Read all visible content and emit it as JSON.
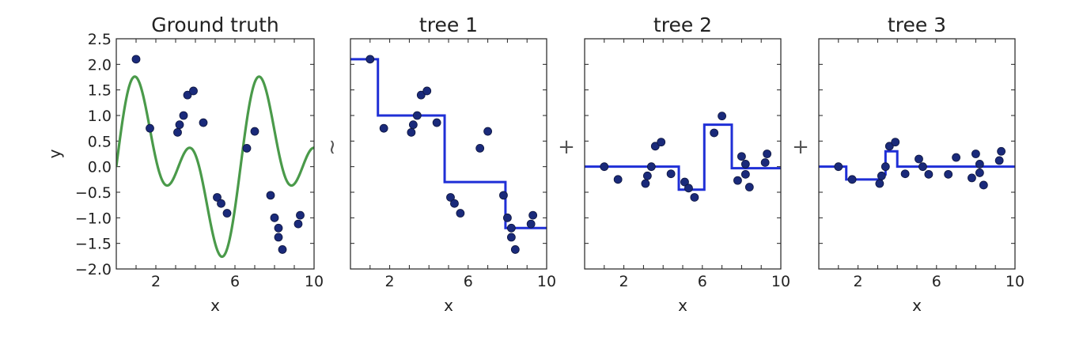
{
  "operators": [
    "~",
    "+",
    "+"
  ],
  "colors": {
    "truth_curve": "#4a9a4a",
    "points": "#1a2a7a",
    "step": "#1f2fd6"
  },
  "chart_data": [
    {
      "type": "scatter",
      "title": "Ground truth",
      "xlabel": "x",
      "ylabel": "y",
      "xlim": [
        0,
        10
      ],
      "ylim": [
        -2.0,
        2.5
      ],
      "xticks": [
        2,
        6,
        10
      ],
      "yticks": [
        "2.5",
        "2.0",
        "1.5",
        "1.0",
        "0.5",
        "0.0",
        "−0.5",
        "−1.0",
        "−1.5",
        "−2.0"
      ],
      "curve": "sin(x) + sin(2x)",
      "points": {
        "x": [
          1.0,
          1.7,
          3.1,
          3.2,
          3.4,
          3.6,
          3.9,
          4.4,
          5.1,
          5.3,
          5.6,
          6.6,
          7.0,
          7.8,
          8.0,
          8.2,
          8.2,
          8.4,
          9.2,
          9.3
        ],
        "y": [
          2.1,
          0.75,
          0.67,
          0.82,
          1.0,
          1.4,
          1.48,
          0.86,
          -0.6,
          -0.72,
          -0.91,
          0.36,
          0.69,
          -0.56,
          -1.0,
          -1.2,
          -1.38,
          -1.62,
          -1.12,
          -0.95
        ]
      }
    },
    {
      "type": "line",
      "title": "tree 1",
      "xlabel": "x",
      "xlim": [
        0,
        10
      ],
      "ylim": [
        -2.0,
        2.5
      ],
      "xticks": [
        2,
        6,
        10
      ],
      "steps": {
        "x": [
          0,
          1.4,
          1.4,
          4.8,
          4.8,
          7.9,
          7.9,
          10
        ],
        "y": [
          2.1,
          2.1,
          1.0,
          1.0,
          -0.3,
          -0.3,
          -1.2,
          -1.2
        ]
      },
      "points": {
        "x": [
          1.0,
          1.7,
          3.1,
          3.2,
          3.4,
          3.6,
          3.9,
          4.4,
          5.1,
          5.3,
          5.6,
          6.6,
          7.0,
          7.8,
          8.0,
          8.2,
          8.2,
          8.4,
          9.2,
          9.3
        ],
        "y": [
          2.1,
          0.75,
          0.67,
          0.82,
          1.0,
          1.4,
          1.48,
          0.86,
          -0.6,
          -0.72,
          -0.91,
          0.36,
          0.69,
          -0.56,
          -1.0,
          -1.2,
          -1.38,
          -1.62,
          -1.12,
          -0.95
        ]
      }
    },
    {
      "type": "line",
      "title": "tree 2",
      "xlabel": "x",
      "xlim": [
        0,
        10
      ],
      "ylim": [
        -2.0,
        2.5
      ],
      "xticks": [
        2,
        6,
        10
      ],
      "steps": {
        "x": [
          0,
          4.8,
          4.8,
          6.1,
          6.1,
          7.5,
          7.5,
          10
        ],
        "y": [
          0.0,
          0.0,
          -0.45,
          -0.45,
          0.82,
          0.82,
          -0.03,
          -0.03
        ]
      },
      "points": {
        "x": [
          1.0,
          1.7,
          3.1,
          3.2,
          3.4,
          3.6,
          3.9,
          4.4,
          5.1,
          5.3,
          5.6,
          6.6,
          7.0,
          7.8,
          8.0,
          8.2,
          8.2,
          8.4,
          9.2,
          9.3
        ],
        "y": [
          0.0,
          -0.25,
          -0.33,
          -0.18,
          0.0,
          0.4,
          0.48,
          -0.14,
          -0.3,
          -0.42,
          -0.6,
          0.66,
          0.99,
          -0.27,
          0.2,
          0.05,
          -0.15,
          -0.4,
          0.08,
          0.25
        ]
      }
    },
    {
      "type": "line",
      "title": "tree 3",
      "xlabel": "x",
      "xlim": [
        0,
        10
      ],
      "ylim": [
        -2.0,
        2.5
      ],
      "xticks": [
        2,
        6,
        10
      ],
      "steps": {
        "x": [
          0,
          1.4,
          1.4,
          3.2,
          3.2,
          3.4,
          3.4,
          4.0,
          4.0,
          10
        ],
        "y": [
          0.0,
          0.0,
          -0.25,
          -0.25,
          -0.15,
          -0.15,
          0.3,
          0.3,
          0.0,
          0.0
        ]
      },
      "points": {
        "x": [
          1.0,
          1.7,
          3.1,
          3.2,
          3.4,
          3.6,
          3.9,
          4.4,
          5.1,
          5.3,
          5.6,
          6.6,
          7.0,
          7.8,
          8.0,
          8.2,
          8.2,
          8.4,
          9.2,
          9.3
        ],
        "y": [
          0.0,
          -0.25,
          -0.33,
          -0.18,
          0.0,
          0.4,
          0.48,
          -0.14,
          0.15,
          0.0,
          -0.15,
          -0.15,
          0.18,
          -0.22,
          0.25,
          0.05,
          -0.12,
          -0.36,
          0.12,
          0.3
        ]
      }
    }
  ]
}
